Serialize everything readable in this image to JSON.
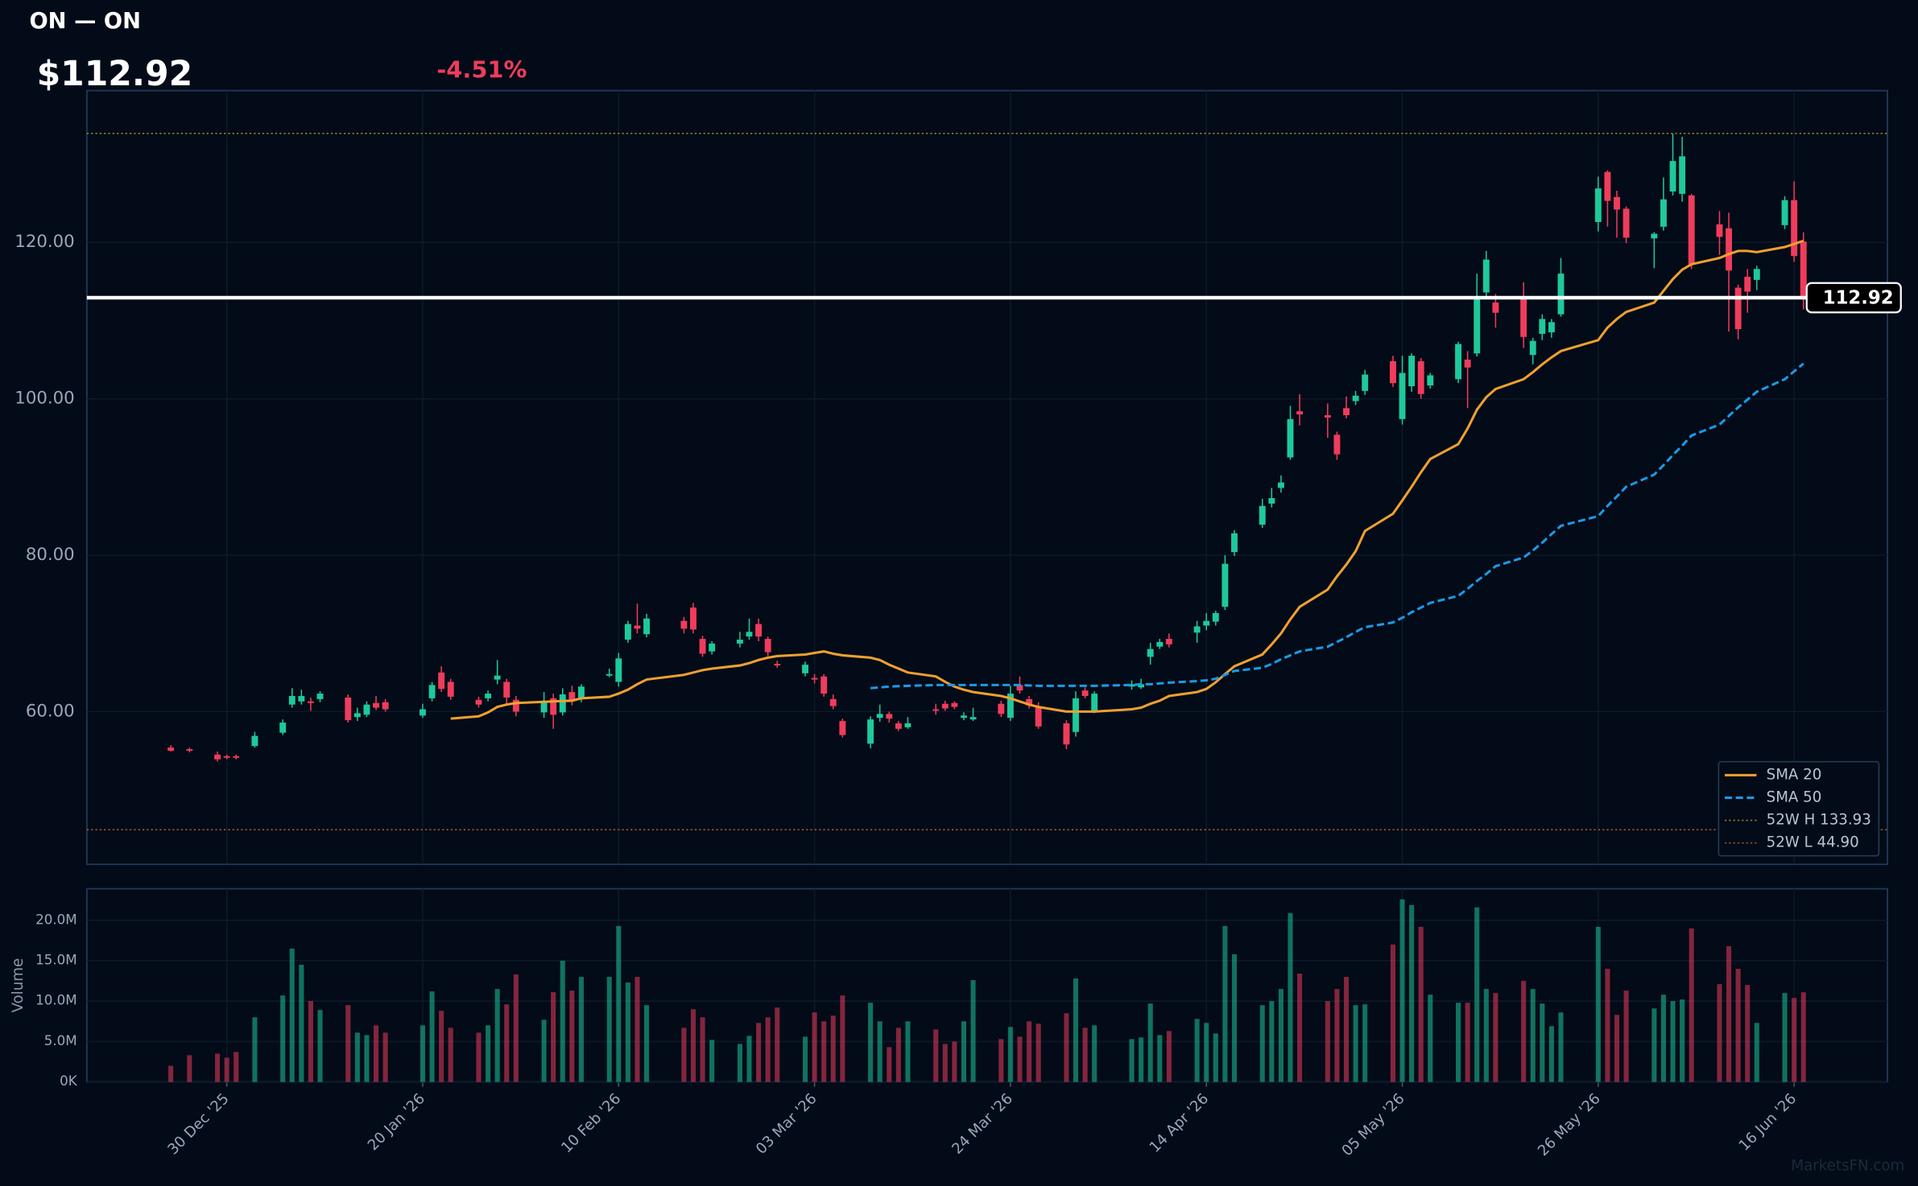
{
  "chart_data": {
    "type": "candlestick",
    "title": "ON — ON",
    "price_label": "$112.92",
    "change_label": "-4.51%",
    "last_price": 112.92,
    "x": [
      "2025-12-24",
      "2025-12-26",
      "2025-12-29",
      "2025-12-30",
      "2025-12-31",
      "2026-01-02",
      "2026-01-05",
      "2026-01-06",
      "2026-01-07",
      "2026-01-08",
      "2026-01-09",
      "2026-01-12",
      "2026-01-13",
      "2026-01-14",
      "2026-01-15",
      "2026-01-16",
      "2026-01-20",
      "2026-01-21",
      "2026-01-22",
      "2026-01-23",
      "2026-01-26",
      "2026-01-27",
      "2026-01-28",
      "2026-01-29",
      "2026-01-30",
      "2026-02-02",
      "2026-02-03",
      "2026-02-04",
      "2026-02-05",
      "2026-02-06",
      "2026-02-09",
      "2026-02-10",
      "2026-02-11",
      "2026-02-12",
      "2026-02-13",
      "2026-02-17",
      "2026-02-18",
      "2026-02-19",
      "2026-02-20",
      "2026-02-23",
      "2026-02-24",
      "2026-02-25",
      "2026-02-26",
      "2026-02-27",
      "2026-03-02",
      "2026-03-03",
      "2026-03-04",
      "2026-03-05",
      "2026-03-06",
      "2026-03-09",
      "2026-03-10",
      "2026-03-11",
      "2026-03-12",
      "2026-03-13",
      "2026-03-16",
      "2026-03-17",
      "2026-03-18",
      "2026-03-19",
      "2026-03-20",
      "2026-03-23",
      "2026-03-24",
      "2026-03-25",
      "2026-03-26",
      "2026-03-27",
      "2026-03-30",
      "2026-03-31",
      "2026-04-01",
      "2026-04-02",
      "2026-04-06",
      "2026-04-07",
      "2026-04-08",
      "2026-04-09",
      "2026-04-10",
      "2026-04-13",
      "2026-04-14",
      "2026-04-15",
      "2026-04-16",
      "2026-04-17",
      "2026-04-20",
      "2026-04-21",
      "2026-04-22",
      "2026-04-23",
      "2026-04-24",
      "2026-04-27",
      "2026-04-28",
      "2026-04-29",
      "2026-04-30",
      "2026-05-01",
      "2026-05-04",
      "2026-05-05",
      "2026-05-06",
      "2026-05-07",
      "2026-05-08",
      "2026-05-11",
      "2026-05-12",
      "2026-05-13",
      "2026-05-14",
      "2026-05-15",
      "2026-05-18",
      "2026-05-19",
      "2026-05-20",
      "2026-05-21",
      "2026-05-22",
      "2026-05-26",
      "2026-05-27",
      "2026-05-28",
      "2026-05-29",
      "2026-06-01",
      "2026-06-02",
      "2026-06-03",
      "2026-06-04",
      "2026-06-05",
      "2026-06-08",
      "2026-06-09",
      "2026-06-10",
      "2026-06-11",
      "2026-06-12",
      "2026-06-15",
      "2026-06-16",
      "2026-06-17"
    ],
    "open": [
      55.4,
      55.2,
      54.5,
      54.3,
      54.3,
      55.6,
      57.3,
      60.9,
      61.3,
      61.3,
      61.6,
      61.8,
      59.3,
      59.6,
      61.1,
      61.2,
      59.5,
      61.7,
      65.0,
      63.8,
      61.5,
      61.7,
      64.1,
      63.8,
      61.5,
      59.9,
      61.7,
      59.9,
      62.5,
      61.6,
      64.6,
      63.8,
      69.2,
      71.0,
      69.9,
      71.6,
      73.3,
      69.3,
      67.7,
      68.7,
      69.6,
      71.2,
      69.3,
      66.1,
      64.9,
      64.3,
      64.5,
      61.6,
      58.8,
      55.9,
      59.2,
      59.7,
      58.5,
      58.0,
      60.3,
      61.0,
      61.1,
      59.2,
      59.0,
      61.0,
      59.2,
      63.4,
      61.6,
      60.5,
      58.5,
      57.4,
      62.7,
      60.0,
      63.2,
      63.1,
      67.0,
      68.3,
      69.3,
      70.1,
      71.0,
      71.5,
      73.4,
      80.4,
      83.9,
      86.6,
      88.6,
      92.5,
      98.4,
      97.9,
      95.4,
      98.8,
      99.7,
      101.0,
      104.8,
      97.4,
      101.6,
      104.8,
      101.7,
      102.5,
      105.0,
      105.8,
      113.6,
      112.3,
      112.8,
      105.6,
      108.3,
      108.5,
      110.8,
      122.6,
      129.0,
      125.8,
      124.3,
      120.5,
      122.0,
      126.5,
      126.2,
      126.0,
      122.3,
      121.8,
      114.2,
      115.6,
      115.2,
      122.2,
      125.4,
      120.1
    ],
    "high": [
      55.7,
      55.4,
      54.9,
      54.5,
      54.5,
      57.4,
      59.0,
      63.0,
      62.8,
      61.8,
      62.6,
      62.2,
      60.5,
      61.3,
      62.0,
      61.6,
      61.0,
      63.8,
      65.8,
      64.2,
      61.9,
      62.7,
      66.6,
      64.2,
      62.0,
      62.5,
      62.3,
      63.0,
      63.3,
      63.5,
      65.5,
      67.5,
      71.6,
      73.8,
      72.5,
      72.1,
      73.9,
      69.7,
      69.0,
      70.2,
      71.9,
      71.9,
      69.6,
      66.5,
      66.4,
      64.8,
      64.8,
      62.2,
      59.1,
      59.4,
      60.9,
      60.0,
      58.8,
      59.3,
      61.0,
      61.4,
      61.3,
      59.9,
      60.5,
      61.4,
      63.3,
      64.5,
      62.0,
      61.2,
      58.9,
      62.6,
      63.1,
      62.6,
      64.0,
      64.2,
      68.8,
      69.3,
      70.0,
      71.6,
      72.6,
      72.9,
      80.0,
      83.2,
      87.2,
      88.6,
      90.2,
      99.1,
      100.6,
      99.4,
      95.8,
      100.3,
      101.0,
      103.7,
      105.5,
      105.5,
      105.8,
      105.2,
      103.3,
      107.3,
      106.1,
      116.0,
      118.9,
      113.4,
      114.9,
      107.8,
      110.8,
      110.2,
      118.0,
      128.4,
      129.2,
      126.6,
      124.6,
      121.3,
      128.3,
      133.9,
      133.5,
      126.2,
      124.0,
      123.8,
      114.6,
      116.6,
      117.0,
      125.9,
      127.8,
      121.3
    ],
    "low": [
      54.9,
      54.8,
      53.6,
      53.9,
      53.9,
      55.4,
      57.0,
      60.5,
      60.9,
      60.1,
      61.2,
      58.6,
      58.8,
      59.3,
      60.2,
      60.0,
      59.2,
      61.3,
      62.5,
      61.5,
      60.5,
      61.3,
      63.5,
      61.0,
      59.4,
      59.2,
      57.8,
      59.5,
      60.8,
      61.2,
      64.4,
      63.2,
      68.8,
      70.0,
      69.5,
      70.0,
      70.0,
      67.0,
      67.3,
      68.2,
      69.2,
      69.0,
      67.1,
      65.6,
      64.5,
      63.6,
      61.9,
      60.3,
      56.7,
      55.3,
      58.7,
      58.6,
      57.5,
      57.8,
      59.6,
      60.1,
      60.3,
      58.9,
      58.8,
      59.3,
      58.8,
      62.3,
      60.4,
      57.8,
      55.2,
      56.8,
      61.7,
      59.8,
      62.8,
      62.9,
      66.0,
      68.0,
      68.2,
      68.8,
      70.4,
      71.0,
      73.0,
      79.9,
      83.5,
      86.1,
      88.0,
      92.2,
      96.6,
      95.0,
      92.2,
      97.5,
      99.2,
      100.5,
      101.5,
      96.7,
      100.9,
      100.0,
      101.3,
      102.0,
      98.8,
      105.4,
      113.1,
      109.1,
      106.5,
      104.4,
      107.5,
      107.8,
      110.5,
      121.4,
      122.0,
      120.6,
      119.9,
      116.7,
      121.5,
      126.0,
      125.2,
      116.6,
      118.4,
      108.6,
      107.6,
      111.0,
      113.9,
      121.7,
      117.5,
      111.4
    ],
    "close": [
      55.0,
      55.0,
      53.9,
      54.1,
      54.1,
      56.9,
      58.6,
      62.0,
      62.0,
      61.1,
      62.3,
      58.9,
      59.8,
      60.9,
      60.5,
      60.3,
      60.3,
      63.4,
      62.9,
      61.9,
      60.9,
      62.3,
      64.6,
      61.8,
      60.0,
      61.4,
      59.6,
      62.2,
      61.5,
      63.2,
      64.8,
      66.8,
      71.2,
      70.6,
      71.9,
      70.6,
      70.5,
      67.4,
      68.7,
      69.2,
      70.2,
      69.6,
      67.6,
      65.9,
      66.0,
      64.1,
      62.3,
      60.7,
      57.0,
      59.0,
      59.7,
      59.1,
      57.8,
      58.5,
      60.1,
      60.4,
      60.6,
      59.5,
      59.3,
      59.7,
      62.3,
      62.7,
      60.8,
      58.1,
      55.8,
      61.7,
      62.0,
      62.3,
      63.5,
      63.5,
      68.0,
      68.9,
      68.6,
      70.9,
      71.6,
      72.6,
      78.9,
      82.8,
      86.3,
      87.3,
      89.3,
      97.4,
      98.0,
      97.6,
      92.9,
      97.9,
      100.4,
      103.1,
      102.0,
      103.3,
      105.5,
      100.6,
      103.0,
      107.0,
      104.0,
      112.8,
      117.8,
      111.0,
      107.9,
      107.4,
      110.2,
      109.8,
      116.0,
      126.9,
      125.3,
      124.2,
      120.6,
      121.1,
      125.5,
      130.4,
      131.0,
      117.2,
      120.7,
      116.4,
      108.9,
      113.7,
      116.6,
      125.4,
      118.25,
      112.92
    ],
    "volume": [
      2000000,
      3300000,
      3500000,
      3000000,
      3700000,
      8000000,
      10700000,
      16500000,
      14500000,
      10000000,
      8900000,
      9500000,
      6100000,
      5800000,
      7000000,
      6100000,
      7000000,
      11200000,
      8800000,
      6700000,
      6100000,
      7000000,
      11500000,
      9600000,
      13300000,
      7700000,
      11100000,
      15000000,
      11300000,
      13000000,
      13000000,
      19300000,
      12300000,
      13000000,
      9500000,
      6700000,
      9000000,
      8000000,
      5200000,
      4700000,
      5700000,
      7300000,
      8000000,
      9200000,
      5600000,
      8600000,
      7500000,
      8200000,
      10700000,
      9800000,
      7500000,
      4300000,
      6700000,
      7500000,
      6500000,
      4700000,
      5000000,
      7500000,
      12600000,
      5300000,
      6800000,
      5600000,
      7500000,
      7200000,
      8500000,
      12800000,
      6700000,
      7000000,
      5300000,
      5500000,
      9700000,
      5800000,
      6300000,
      7800000,
      7300000,
      6000000,
      19300000,
      15800000,
      9500000,
      10000000,
      11500000,
      20900000,
      13400000,
      10000000,
      11500000,
      13000000,
      9500000,
      9600000,
      17000000,
      22600000,
      21900000,
      19200000,
      10800000,
      9800000,
      9800000,
      21600000,
      11500000,
      11000000,
      12500000,
      11500000,
      9700000,
      6900000,
      8600000,
      19200000,
      14000000,
      8300000,
      11300000,
      9100000,
      10800000,
      10000000,
      10200000,
      19000000,
      12100000,
      16800000,
      14000000,
      12000000,
      7300000,
      11000000,
      10400000,
      11100000
    ],
    "series": [
      {
        "name": "SMA 20",
        "color": "#f0a030",
        "dash": false,
        "values": [
          null,
          null,
          null,
          null,
          null,
          null,
          null,
          null,
          null,
          null,
          null,
          null,
          null,
          null,
          null,
          null,
          null,
          null,
          null,
          59.1,
          59.4,
          59.9,
          60.6,
          60.9,
          61.1,
          61.25,
          61.3,
          61.35,
          61.4,
          61.7,
          61.9,
          62.3,
          62.8,
          63.5,
          64.1,
          64.7,
          65.0,
          65.3,
          65.5,
          65.9,
          66.2,
          66.6,
          66.9,
          67.1,
          67.3,
          67.5,
          67.7,
          67.4,
          67.2,
          66.9,
          66.6,
          66.0,
          65.5,
          65.0,
          64.5,
          63.8,
          63.2,
          62.8,
          62.5,
          62.0,
          61.7,
          61.3,
          60.9,
          60.6,
          60.0,
          60.0,
          60.0,
          60.0,
          60.3,
          60.5,
          61.0,
          61.4,
          62.0,
          62.5,
          62.9,
          63.75,
          64.8,
          65.8,
          67.3,
          68.6,
          70.0,
          71.8,
          73.4,
          75.6,
          77.3,
          78.8,
          80.5,
          83.1,
          85.3,
          87.0,
          88.75,
          90.6,
          92.3,
          94.2,
          96.2,
          98.6,
          100.2,
          101.25,
          102.5,
          103.4,
          104.4,
          105.3,
          106.1,
          107.5,
          109.1,
          110.2,
          111.1,
          112.3,
          113.8,
          115.3,
          116.5,
          117.2,
          118.0,
          118.5,
          118.9,
          118.9,
          118.75,
          119.4,
          119.8,
          120.2
        ]
      },
      {
        "name": "SMA 50",
        "color": "#1a9ae8",
        "dash": true,
        "values": [
          null,
          null,
          null,
          null,
          null,
          null,
          null,
          null,
          null,
          null,
          null,
          null,
          null,
          null,
          null,
          null,
          null,
          null,
          null,
          null,
          null,
          null,
          null,
          null,
          null,
          null,
          null,
          null,
          null,
          null,
          null,
          null,
          null,
          null,
          null,
          null,
          null,
          null,
          null,
          null,
          null,
          null,
          null,
          null,
          null,
          null,
          null,
          null,
          null,
          63.0,
          63.1,
          63.2,
          63.25,
          63.3,
          63.4,
          63.4,
          63.4,
          63.4,
          63.4,
          63.4,
          63.4,
          63.4,
          63.35,
          63.3,
          63.3,
          63.3,
          63.3,
          63.3,
          63.4,
          63.5,
          63.5,
          63.6,
          63.7,
          63.9,
          64.0,
          64.2,
          64.7,
          65.2,
          65.6,
          66.1,
          66.7,
          67.2,
          67.7,
          68.3,
          68.9,
          69.5,
          70.2,
          70.8,
          71.4,
          72.0,
          72.7,
          73.3,
          73.9,
          74.8,
          75.7,
          76.7,
          77.6,
          78.6,
          79.7,
          80.6,
          81.6,
          82.7,
          83.75,
          85.0,
          86.3,
          87.5,
          88.75,
          90.3,
          91.5,
          92.8,
          94.0,
          95.3,
          96.7,
          97.8,
          98.9,
          99.9,
          100.9,
          102.5,
          103.5,
          104.5
        ]
      }
    ],
    "reference_lines": [
      {
        "name": "52W H 133.93",
        "value": 133.93,
        "color": "#9a7a32"
      },
      {
        "name": "52W L 44.90",
        "value": 44.9,
        "color": "#9a5a32"
      }
    ],
    "up_color": "#1ec99b",
    "down_color": "#f03c5c",
    "last_price_color": "#ffffff",
    "xlim": [
      "2025-12-15",
      "2026-06-26"
    ],
    "xticks": [
      {
        "value": "2025-12-30",
        "label": "30 Dec '25"
      },
      {
        "value": "2026-01-20",
        "label": "20 Jan '26"
      },
      {
        "value": "2026-02-10",
        "label": "10 Feb '26"
      },
      {
        "value": "2026-03-03",
        "label": "03 Mar '26"
      },
      {
        "value": "2026-03-24",
        "label": "24 Mar '26"
      },
      {
        "value": "2026-04-14",
        "label": "14 Apr '26"
      },
      {
        "value": "2026-05-05",
        "label": "05 May '26"
      },
      {
        "value": "2026-05-26",
        "label": "26 May '26"
      },
      {
        "value": "2026-06-16",
        "label": "16 Jun '26"
      }
    ],
    "ylim": [
      40.47,
      139.4
    ],
    "yticks": [
      {
        "value": 60,
        "label": "60.00"
      },
      {
        "value": 80,
        "label": "80.00"
      },
      {
        "value": 100,
        "label": "100.00"
      },
      {
        "value": 120,
        "label": "120.00"
      }
    ],
    "y2_label": "Volume",
    "y2lim": [
      0,
      23900000
    ],
    "y2ticks": [
      {
        "value": 0,
        "label": "0K"
      },
      {
        "value": 5000000,
        "label": "5.0M"
      },
      {
        "value": 10000000,
        "label": "10.0M"
      },
      {
        "value": 15000000,
        "label": "15.0M"
      },
      {
        "value": 20000000,
        "label": "20.0M"
      }
    ],
    "grid": true,
    "legend": "lower right",
    "watermark": "MarketsFN.com"
  }
}
